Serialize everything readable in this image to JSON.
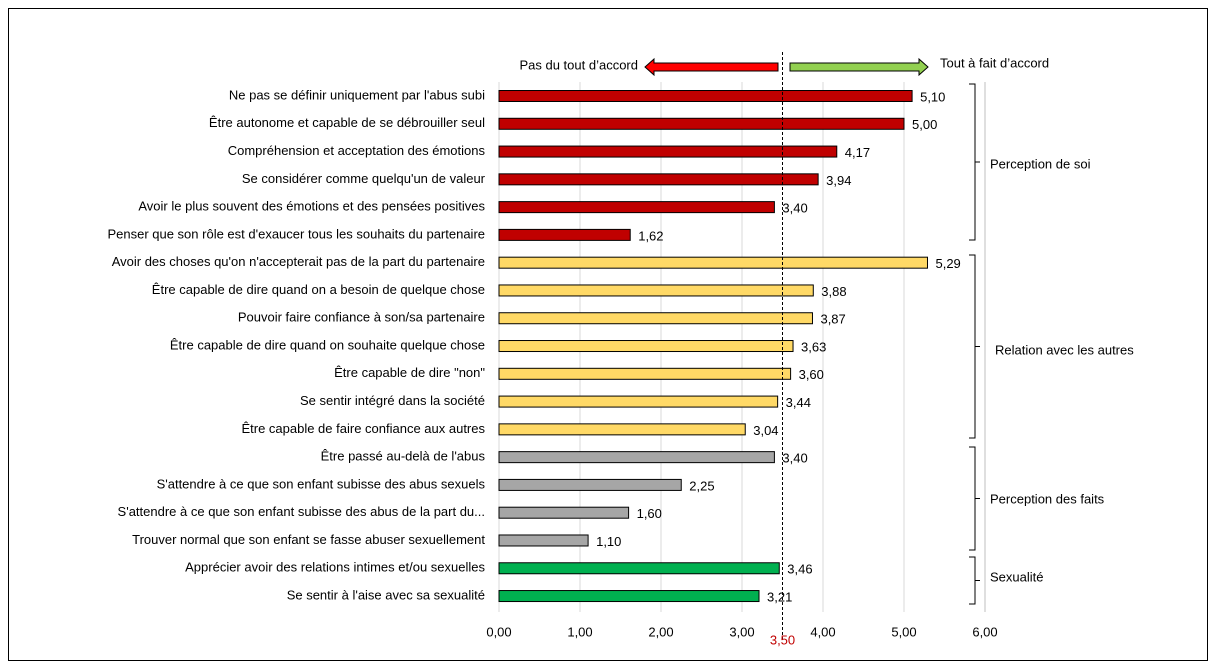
{
  "chart_data": {
    "type": "bar",
    "orientation": "horizontal",
    "categories": [
      "Ne pas se définir uniquement par l'abus subi",
      "Être autonome et capable de se débrouiller seul",
      "Compréhension et acceptation des émotions",
      "Se considérer comme quelqu'un de valeur",
      "Avoir le plus souvent des émotions et des pensées positives",
      "Penser que son rôle est d'exaucer tous les souhaits du partenaire",
      "Avoir des choses qu'on n'accepterait pas de la part du partenaire",
      "Être capable de dire quand on a besoin de quelque chose",
      "Pouvoir faire confiance à son/sa partenaire",
      "Être capable de dire quand on souhaite quelque chose",
      "Être capable de dire \"non\"",
      "Se sentir intégré dans la société",
      "Être capable de faire confiance aux autres",
      "Être passé au-delà de l'abus",
      "S'attendre à ce que son enfant subisse des abus sexuels",
      "S'attendre à ce que son enfant subisse des abus de la part du...",
      "Trouver normal que son enfant se fasse abuser sexuellement",
      "Apprécier avoir des relations intimes et/ou sexuelles",
      "Se sentir à l'aise avec sa sexualité"
    ],
    "values": [
      5.1,
      5.0,
      4.17,
      3.94,
      3.4,
      1.62,
      5.29,
      3.88,
      3.87,
      3.63,
      3.6,
      3.44,
      3.04,
      3.4,
      2.25,
      1.6,
      1.1,
      3.46,
      3.21
    ],
    "value_labels": [
      "5,10",
      "5,00",
      "4,17",
      "3,94",
      "3,40",
      "1,62",
      "5,29",
      "3,88",
      "3,87",
      "3,63",
      "3,60",
      "3,44",
      "3,04",
      "3,40",
      "2,25",
      "1,60",
      "1,10",
      "3,46",
      "3,21"
    ],
    "colors": [
      "#c00000",
      "#c00000",
      "#c00000",
      "#c00000",
      "#c00000",
      "#c00000",
      "#ffd966",
      "#ffd966",
      "#ffd966",
      "#ffd966",
      "#ffd966",
      "#ffd966",
      "#ffd966",
      "#a6a6a6",
      "#a6a6a6",
      "#a6a6a6",
      "#a6a6a6",
      "#00b050",
      "#00b050"
    ],
    "xlim": [
      0,
      6
    ],
    "xticks": [
      {
        "value": 0,
        "label": "0,00"
      },
      {
        "value": 1,
        "label": "1,00"
      },
      {
        "value": 2,
        "label": "2,00"
      },
      {
        "value": 3,
        "label": "3,00"
      },
      {
        "value": 4,
        "label": "4,00"
      },
      {
        "value": 5,
        "label": "5,00"
      },
      {
        "value": 6,
        "label": "6,00"
      }
    ],
    "grid": true,
    "reference": {
      "value": 3.5,
      "label": "3,50",
      "color": "#c00000"
    },
    "left_annotation": "Pas du tout d’accord",
    "right_annotation": "Tout à fait d’accord",
    "group_labels": [
      "Perception de soi",
      "Relation avec les autres",
      "Perception des faits",
      "Sexualité"
    ]
  }
}
